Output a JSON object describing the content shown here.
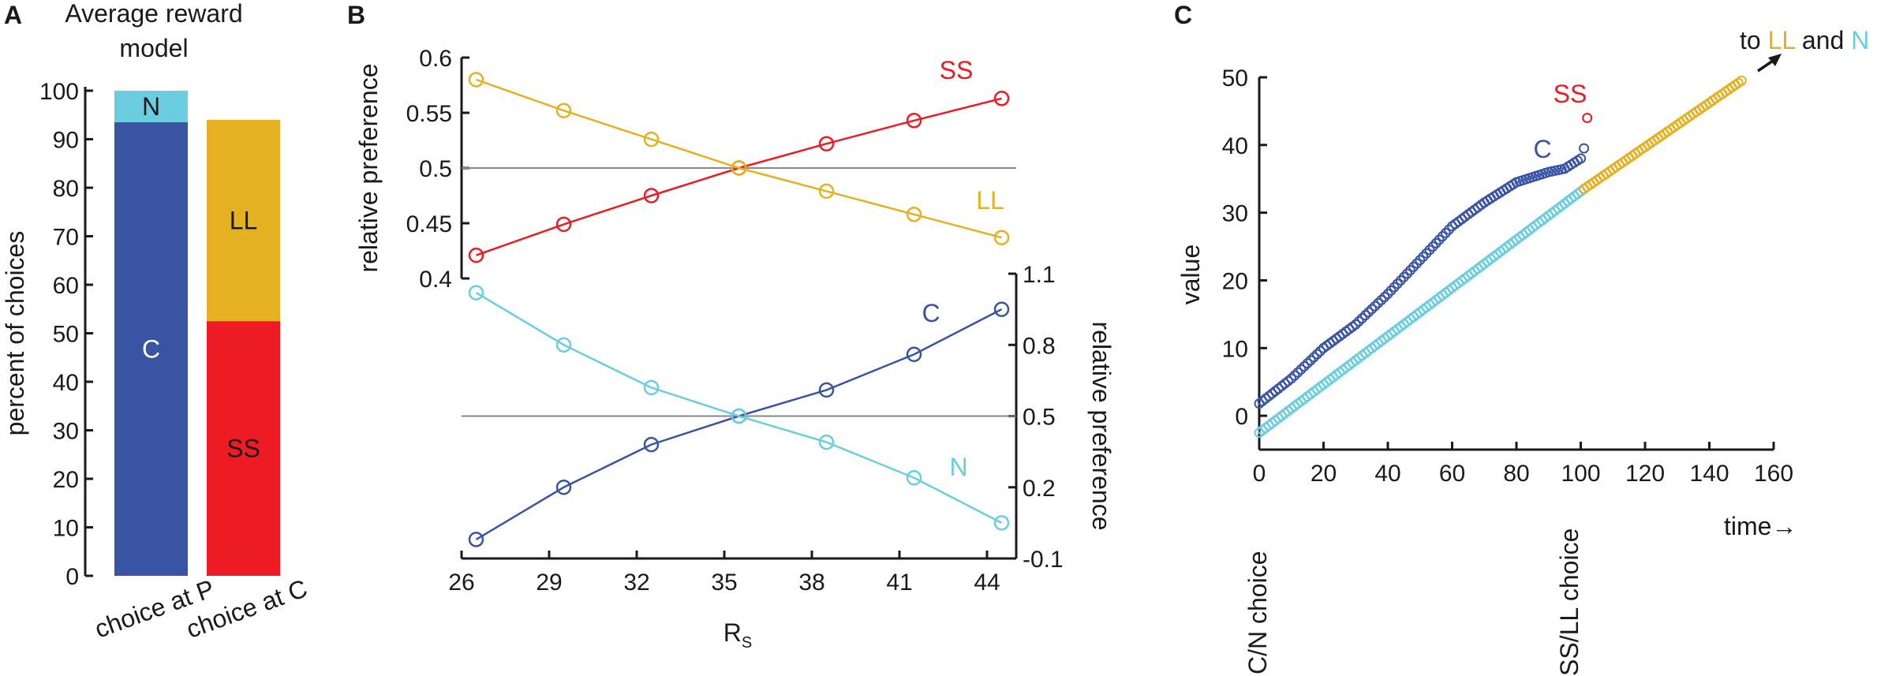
{
  "colors": {
    "C": "#3a54a4",
    "N": "#6acde0",
    "SS": "#ed1c24",
    "LL": "#e3b122",
    "axis": "#1a1a1a",
    "refline": "#888888"
  },
  "chart_data": [
    {
      "panel": "A",
      "type": "bar",
      "stacked": true,
      "title": "Average reward model",
      "ylabel": "percent of choices",
      "ylim": [
        0,
        100
      ],
      "yticks": [
        "0",
        "10",
        "20",
        "30",
        "40",
        "50",
        "60",
        "70",
        "80",
        "90",
        "100"
      ],
      "categories": [
        "choice at P",
        "choice at C"
      ],
      "series": [
        {
          "name": "C",
          "values": [
            93.5,
            0
          ]
        },
        {
          "name": "N",
          "values": [
            6.5,
            0
          ]
        },
        {
          "name": "SS",
          "values": [
            0,
            52.5
          ]
        },
        {
          "name": "LL",
          "values": [
            0,
            41.5
          ]
        }
      ]
    },
    {
      "panel": "B-top",
      "type": "line",
      "ylabel": "relative preference",
      "ylim": [
        0.4,
        0.6
      ],
      "yticks": [
        "0.4",
        "0.45",
        "0.5",
        "0.55",
        "0.6"
      ],
      "x": [
        26.5,
        29.5,
        32.5,
        35.5,
        38.5,
        41.5,
        44.5
      ],
      "reference_y": 0.5,
      "series": [
        {
          "name": "SS",
          "values": [
            0.421,
            0.449,
            0.475,
            0.5,
            0.522,
            0.543,
            0.563
          ]
        },
        {
          "name": "LL",
          "values": [
            0.58,
            0.552,
            0.526,
            0.5,
            0.479,
            0.458,
            0.437
          ]
        }
      ]
    },
    {
      "panel": "B-bottom",
      "type": "line",
      "ylabel": "relative preference",
      "xlabel": "R",
      "xlabel_sub": "S",
      "xlim": [
        26,
        45
      ],
      "xticks": [
        "26",
        "29",
        "32",
        "35",
        "38",
        "41",
        "44"
      ],
      "ylim": [
        -0.1,
        1.1
      ],
      "yticks": [
        "-0.1",
        "0.2",
        "0.5",
        "0.8",
        "1.1"
      ],
      "x": [
        26.5,
        29.5,
        32.5,
        35.5,
        38.5,
        41.5,
        44.5
      ],
      "reference_y": 0.5,
      "series": [
        {
          "name": "C",
          "values": [
            -0.02,
            0.2,
            0.38,
            0.5,
            0.61,
            0.76,
            0.95
          ]
        },
        {
          "name": "N",
          "values": [
            1.02,
            0.8,
            0.62,
            0.5,
            0.39,
            0.24,
            0.05
          ]
        }
      ]
    },
    {
      "panel": "C",
      "type": "scatter",
      "ylabel": "value",
      "xlabel": "time→",
      "xlim": [
        0,
        160
      ],
      "xticks": [
        "0",
        "20",
        "40",
        "60",
        "80",
        "100",
        "120",
        "140",
        "160"
      ],
      "ylim": [
        -5,
        50
      ],
      "yticks": [
        "0",
        "10",
        "20",
        "30",
        "40",
        "50"
      ],
      "series": [
        {
          "name": "C",
          "points": [
            [
              0,
              1.8
            ],
            [
              10,
              5.5
            ],
            [
              20,
              10
            ],
            [
              30,
              13.5
            ],
            [
              40,
              18
            ],
            [
              50,
              23
            ],
            [
              60,
              28
            ],
            [
              70,
              31.5
            ],
            [
              80,
              34.5
            ],
            [
              90,
              36
            ],
            [
              95,
              36.5
            ],
            [
              100,
              38
            ],
            [
              101,
              39.5
            ]
          ]
        },
        {
          "name": "N",
          "points": [
            [
              0,
              -2.5
            ],
            [
              101,
              33.5
            ]
          ]
        },
        {
          "name": "LL",
          "points": [
            [
              101,
              33.5
            ],
            [
              150,
              49.5
            ]
          ]
        },
        {
          "name": "SS",
          "points": [
            [
              102,
              44
            ]
          ]
        }
      ],
      "annotations": {
        "vertical_left": "C/N choice",
        "vertical_right": "SS/LL choice",
        "arrow_prefix": "to",
        "arrow_ll": "LL",
        "arrow_and": "and",
        "arrow_n": "N"
      }
    }
  ],
  "panels": {
    "A": {
      "letter": "A",
      "title_line1": "Average reward",
      "title_line2": "model"
    },
    "B": {
      "letter": "B"
    },
    "C": {
      "letter": "C"
    }
  }
}
